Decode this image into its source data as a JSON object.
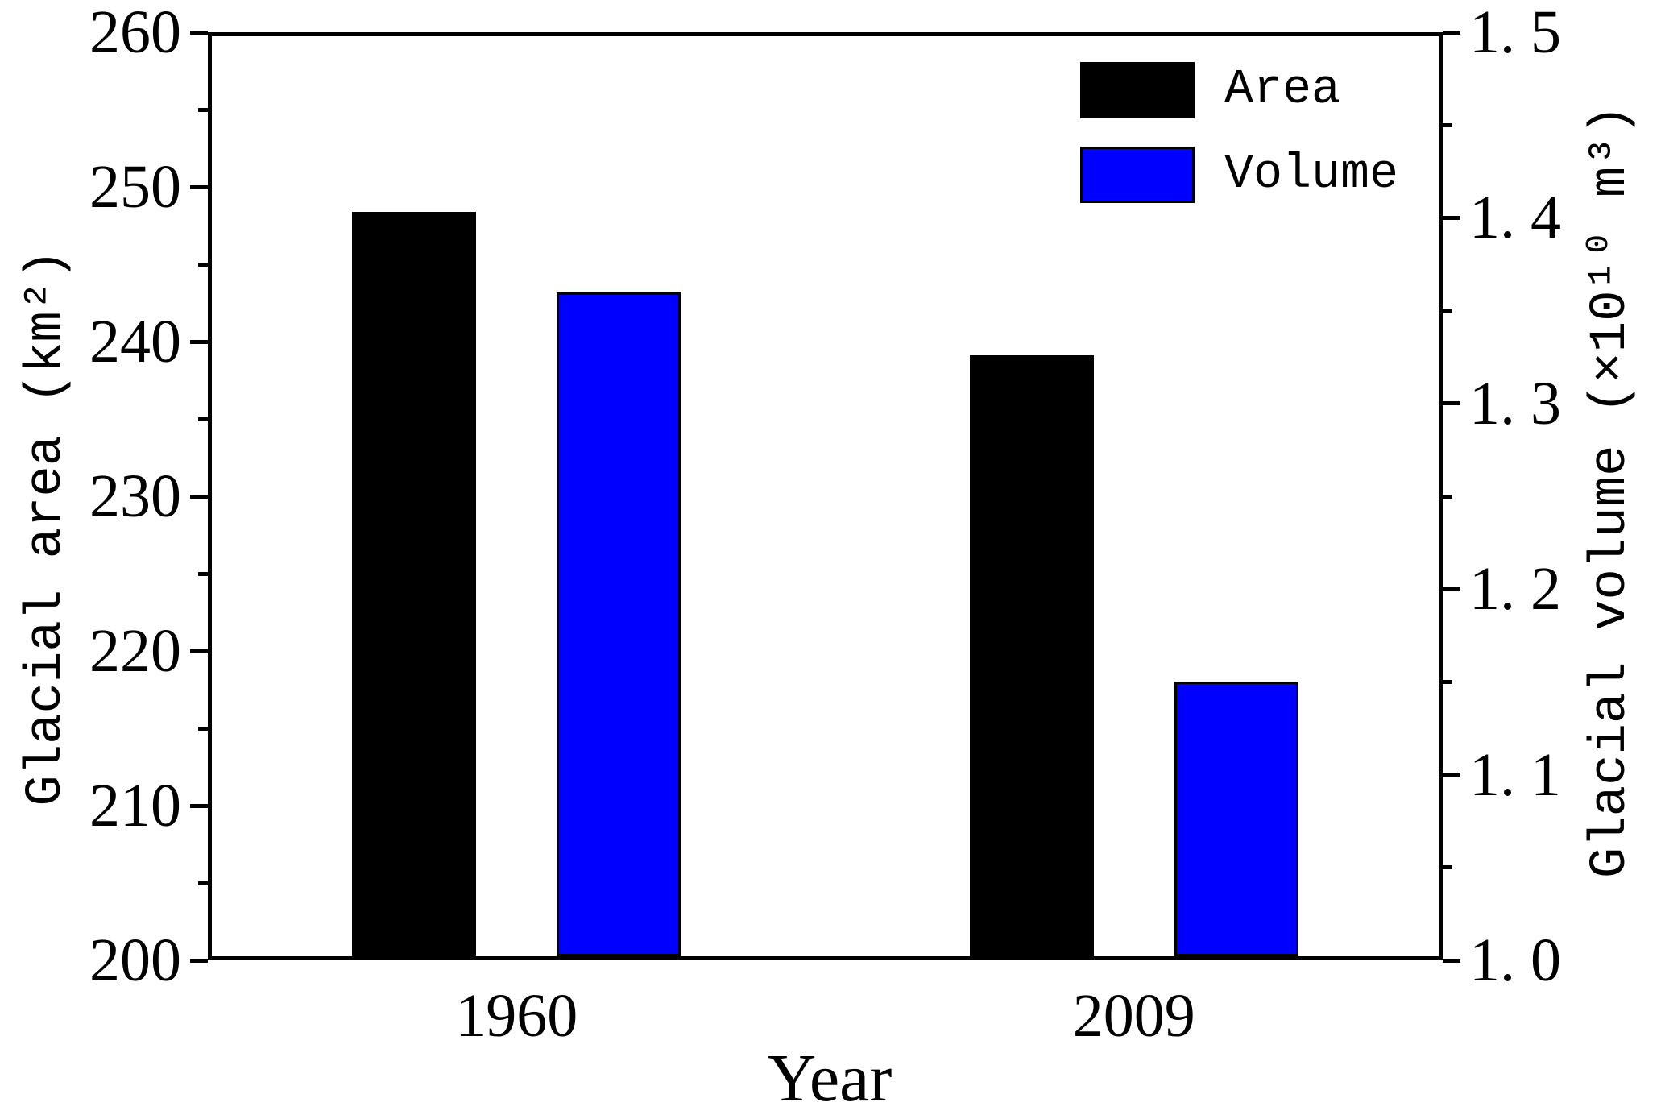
{
  "chart_data": {
    "type": "bar",
    "title": "",
    "categories": [
      "1960",
      "2009"
    ],
    "series": [
      {
        "name": "Area",
        "axis": "left",
        "color": "#000000",
        "values": [
          248.4,
          239.1
        ]
      },
      {
        "name": "Volume",
        "axis": "right",
        "color": "#0000ff",
        "values": [
          1.36,
          1.15
        ]
      }
    ],
    "xlabel": "Year",
    "left_axis": {
      "label": "Glacial area (km²)",
      "min": 200,
      "max": 260,
      "major_step": 10,
      "minor_step": 5,
      "tick_labels": [
        "200",
        "210",
        "220",
        "230",
        "240",
        "250",
        "260"
      ]
    },
    "right_axis": {
      "label": "Glacial volume (×10¹⁰ m³)",
      "min": 1.0,
      "max": 1.5,
      "major_step": 0.1,
      "minor_step": 0.05,
      "tick_labels": [
        "1. 0",
        "1. 1",
        "1. 2",
        "1. 3",
        "1. 4",
        "1. 5"
      ]
    },
    "legend": {
      "position": "top-right",
      "items": [
        {
          "label": "Area",
          "color": "#000000"
        },
        {
          "label": "Volume",
          "color": "#0000ff"
        }
      ]
    },
    "grid": false,
    "background": "#ffffff",
    "frame_color": "#000000"
  }
}
